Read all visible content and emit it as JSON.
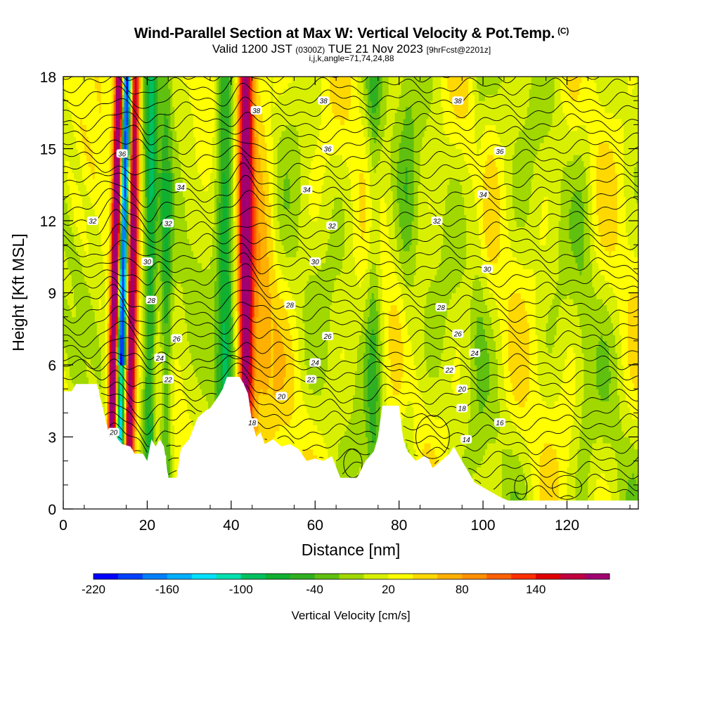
{
  "header": {
    "title": "Wind-Parallel Section at Max W: Vertical Velocity & Pot.Temp.",
    "title_mark": "(C)",
    "subtitle_main": "Valid 1200 JST",
    "subtitle_small1": "(0300Z)",
    "subtitle_date": "TUE 21 Nov 2023",
    "subtitle_small2": "[9hrFcst@2201z]",
    "subsub": "i,j,k,angle=71,74,24,88"
  },
  "chart_data": {
    "type": "heatmap",
    "xlabel": "Distance [nm]",
    "ylabel": "Height [Kft MSL]",
    "xlim": [
      0,
      137
    ],
    "ylim": [
      0,
      18
    ],
    "x_ticks": [
      0,
      20,
      40,
      60,
      80,
      100,
      120
    ],
    "y_ticks": [
      0,
      3,
      6,
      9,
      12,
      15,
      18
    ],
    "grid": false,
    "colorbar": {
      "title": "Vertical Velocity [cm/s]",
      "tick_labels": [
        "-220",
        "-160",
        "-100",
        "-40",
        "20",
        "80",
        "140"
      ],
      "tick_values": [
        -220,
        -160,
        -100,
        -40,
        20,
        80,
        140
      ],
      "range": [
        -220,
        200
      ],
      "bins": 21,
      "colors": [
        "#0000ff",
        "#0040ff",
        "#0080ff",
        "#00b0ff",
        "#00e0ff",
        "#00e0b0",
        "#00c060",
        "#10b030",
        "#30b020",
        "#60c010",
        "#a0d800",
        "#d8f000",
        "#ffff00",
        "#ffd800",
        "#ffb000",
        "#ff9000",
        "#ff6000",
        "#ff3000",
        "#e00000",
        "#c00040",
        "#a00070"
      ]
    },
    "theta_contour_labels": [
      {
        "text": "38",
        "x": 46,
        "y": 16.6
      },
      {
        "text": "38",
        "x": 62,
        "y": 17.0
      },
      {
        "text": "38",
        "x": 94,
        "y": 17.0
      },
      {
        "text": "36",
        "x": 14,
        "y": 14.8
      },
      {
        "text": "36",
        "x": 63,
        "y": 15.0
      },
      {
        "text": "36",
        "x": 104,
        "y": 14.9
      },
      {
        "text": "34",
        "x": 28,
        "y": 13.4
      },
      {
        "text": "34",
        "x": 58,
        "y": 13.3
      },
      {
        "text": "34",
        "x": 100,
        "y": 13.1
      },
      {
        "text": "32",
        "x": 7,
        "y": 12.0
      },
      {
        "text": "32",
        "x": 25,
        "y": 11.9
      },
      {
        "text": "32",
        "x": 64,
        "y": 11.8
      },
      {
        "text": "32",
        "x": 89,
        "y": 12.0
      },
      {
        "text": "30",
        "x": 20,
        "y": 10.3
      },
      {
        "text": "30",
        "x": 60,
        "y": 10.3
      },
      {
        "text": "30",
        "x": 101,
        "y": 10.0
      },
      {
        "text": "28",
        "x": 21,
        "y": 8.7
      },
      {
        "text": "28",
        "x": 54,
        "y": 8.5
      },
      {
        "text": "28",
        "x": 90,
        "y": 8.4
      },
      {
        "text": "26",
        "x": 27,
        "y": 7.1
      },
      {
        "text": "26",
        "x": 63,
        "y": 7.2
      },
      {
        "text": "26",
        "x": 94,
        "y": 7.3
      },
      {
        "text": "24",
        "x": 23,
        "y": 6.3
      },
      {
        "text": "24",
        "x": 60,
        "y": 6.1
      },
      {
        "text": "24",
        "x": 98,
        "y": 6.5
      },
      {
        "text": "22",
        "x": 25,
        "y": 5.4
      },
      {
        "text": "22",
        "x": 59,
        "y": 5.4
      },
      {
        "text": "22",
        "x": 92,
        "y": 5.8
      },
      {
        "text": "20",
        "x": 52,
        "y": 4.7
      },
      {
        "text": "20",
        "x": 95,
        "y": 5.0
      },
      {
        "text": "18",
        "x": 45,
        "y": 3.6
      },
      {
        "text": "18",
        "x": 95,
        "y": 4.2
      },
      {
        "text": "16",
        "x": 104,
        "y": 3.6
      },
      {
        "text": "14",
        "x": 96,
        "y": 2.9
      },
      {
        "text": "20",
        "x": 12,
        "y": 3.2
      }
    ],
    "updraft_bands_x": [
      11.5,
      15.5,
      43.5
    ],
    "downdraft_bands_x": [
      13.5,
      20,
      24,
      38,
      74
    ]
  }
}
